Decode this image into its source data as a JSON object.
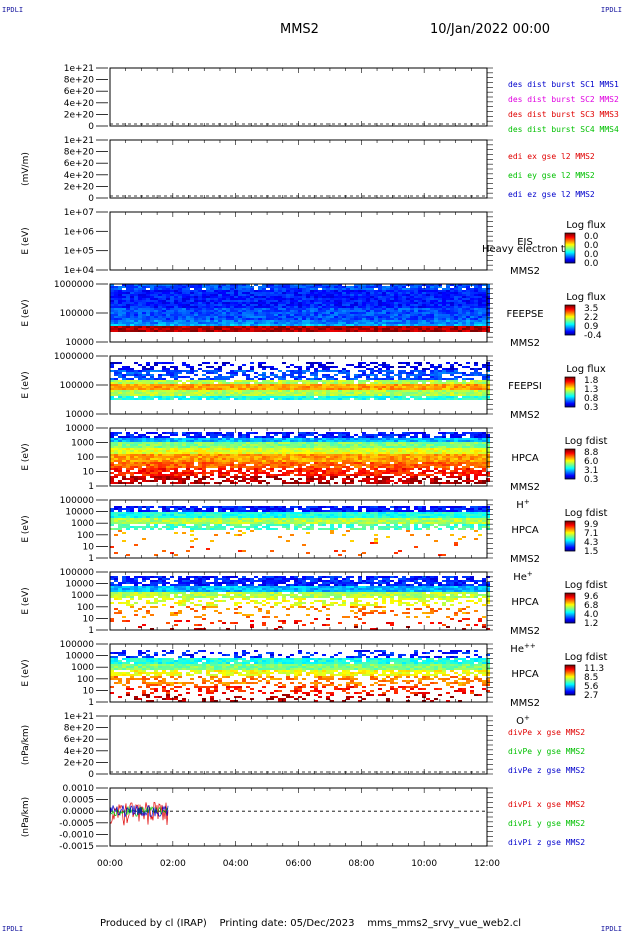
{
  "corners": {
    "label": "IPDLI"
  },
  "header": {
    "spacecraft": "MMS2",
    "date_time": "10/Jan/2022 00:00"
  },
  "footer": {
    "produced_by": "Produced by cl (IRAP)",
    "printing_date": "Printing date: 05/Dec/2023",
    "filename": "mms_mms2_srvy_vue_web2.cl"
  },
  "chart_data": {
    "type": "heatmap",
    "x_ticks": [
      "00:00",
      "02:00",
      "04:00",
      "06:00",
      "08:00",
      "10:00",
      "12:00"
    ],
    "panels": [
      {
        "id": "p1",
        "kind": "line",
        "ylabel": "",
        "ticks": [
          "1e+21",
          "8e+20",
          "6e+20",
          "4e+20",
          "2e+20",
          "0"
        ],
        "legend": [
          {
            "text": "des dist burst SC1 MMS1",
            "color": "#0000cc"
          },
          {
            "text": "des dist burst SC2 MMS2",
            "color": "#e000e0"
          },
          {
            "text": "des dist burst SC3 MMS3",
            "color": "#e00000"
          },
          {
            "text": "des dist burst SC4 MMS4",
            "color": "#00c000"
          }
        ]
      },
      {
        "id": "p2",
        "kind": "line",
        "ylabel": "(mV/m)",
        "ticks": [
          "1e+21",
          "8e+20",
          "6e+20",
          "4e+20",
          "2e+20",
          "0"
        ],
        "legend": [
          {
            "text": "edi ex gse l2 MMS2",
            "color": "#e00000"
          },
          {
            "text": "edi ey gse l2 MMS2",
            "color": "#00c000"
          },
          {
            "text": "edi ez gse l2 MMS2",
            "color": "#0000cc"
          }
        ]
      },
      {
        "id": "p3",
        "kind": "spectro",
        "ylabel": "E (eV)",
        "ticks": [
          "1e+07",
          "1e+06",
          "1e+05",
          "1e+04"
        ],
        "instrument": "EIS",
        "mission": "MMS2",
        "species": "",
        "overlay": "Heavy electron to",
        "cbar_title": "Log flux",
        "cbar_ticks": [
          "0.0",
          "0.0",
          "0.0",
          "0.0"
        ],
        "pattern": "empty"
      },
      {
        "id": "p4",
        "kind": "spectro",
        "ylabel": "E (eV)",
        "ticks": [
          "1000000",
          "100000",
          "10000"
        ],
        "instrument": "FEEPSE",
        "mission": "MMS2",
        "species": "",
        "cbar_title": "Log flux",
        "cbar_ticks": [
          "3.5",
          "2.2",
          "0.9",
          "-0.4"
        ],
        "pattern": "feepse"
      },
      {
        "id": "p5",
        "kind": "spectro",
        "ylabel": "E (eV)",
        "ticks": [
          "1000000",
          "100000",
          "10000"
        ],
        "instrument": "FEEPSI",
        "mission": "MMS2",
        "species": "",
        "cbar_title": "Log flux",
        "cbar_ticks": [
          "1.8",
          "1.3",
          "0.8",
          "0.3"
        ],
        "pattern": "feepsi"
      },
      {
        "id": "p6",
        "kind": "spectro",
        "ylabel": "E (eV)",
        "ticks": [
          "10000",
          "1000",
          "100",
          "10",
          "1"
        ],
        "instrument": "HPCA",
        "mission": "MMS2",
        "species": "H+",
        "cbar_title": "Log fdist",
        "cbar_ticks": [
          "8.8",
          "6.0",
          "3.1",
          "0.3"
        ],
        "pattern": "hplus"
      },
      {
        "id": "p7",
        "kind": "spectro",
        "ylabel": "E (eV)",
        "ticks": [
          "100000",
          "10000",
          "1000",
          "100",
          "10",
          "1"
        ],
        "instrument": "HPCA",
        "mission": "MMS2",
        "species": "He+",
        "cbar_title": "Log fdist",
        "cbar_ticks": [
          "9.9",
          "7.1",
          "4.3",
          "1.5"
        ],
        "pattern": "heplus"
      },
      {
        "id": "p8",
        "kind": "spectro",
        "ylabel": "E (eV)",
        "ticks": [
          "100000",
          "10000",
          "1000",
          "100",
          "10",
          "1"
        ],
        "instrument": "HPCA",
        "mission": "MMS2",
        "species": "He++",
        "cbar_title": "Log fdist",
        "cbar_ticks": [
          "9.6",
          "6.8",
          "4.0",
          "1.2"
        ],
        "pattern": "hepp"
      },
      {
        "id": "p9",
        "kind": "spectro",
        "ylabel": "E (eV)",
        "ticks": [
          "100000",
          "10000",
          "1000",
          "100",
          "10",
          "1"
        ],
        "instrument": "HPCA",
        "mission": "MMS2",
        "species": "O+",
        "cbar_title": "Log fdist",
        "cbar_ticks": [
          "11.3",
          "8.5",
          "5.6",
          "2.7"
        ],
        "pattern": "oplus"
      },
      {
        "id": "p10",
        "kind": "line",
        "ylabel": "(nPa/km)",
        "ticks": [
          "1e+21",
          "8e+20",
          "6e+20",
          "4e+20",
          "2e+20",
          "0"
        ],
        "legend": [
          {
            "text": "divPe x gse MMS2",
            "color": "#e00000"
          },
          {
            "text": "divPe y gse MMS2",
            "color": "#00c000"
          },
          {
            "text": "divPe z gse MMS2",
            "color": "#0000cc"
          }
        ]
      },
      {
        "id": "p11",
        "kind": "line",
        "ylabel": "(nPa/km)",
        "ticks": [
          "0.0010",
          "0.0005",
          "0.0000",
          "-0.0005",
          "-0.0010",
          "-0.0015"
        ],
        "ylim": [
          -0.0015,
          0.001
        ],
        "legend": [
          {
            "text": "divPi x gse MMS2",
            "color": "#e00000"
          },
          {
            "text": "divPi y gse MMS2",
            "color": "#00c000"
          },
          {
            "text": "divPi z gse MMS2",
            "color": "#0000cc"
          }
        ],
        "data_span_hours": [
          0,
          1.85
        ]
      }
    ]
  }
}
